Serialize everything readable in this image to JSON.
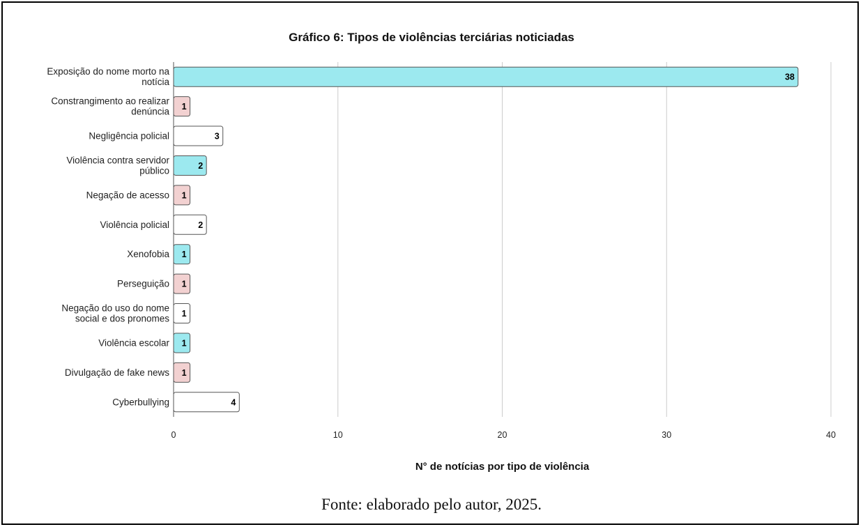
{
  "source_note": "Fonte: elaborado pelo autor, 2025.",
  "colors": {
    "cyan": "#9ce9ef",
    "pink": "#f2d1d1",
    "white": "#ffffff",
    "grid": "#cccccc",
    "axis": "#555555"
  },
  "chart_data": {
    "type": "bar",
    "orientation": "horizontal",
    "title": "Gráfico 6: Tipos de violências terciárias noticiadas",
    "xlabel": "N° de notícias por tipo de violência",
    "ylabel": "",
    "xlim": [
      0,
      40
    ],
    "xticks": [
      0,
      10,
      20,
      30,
      40
    ],
    "grid": true,
    "data_labels": true,
    "categories": [
      [
        "Exposição do nome morto na",
        "notícia"
      ],
      [
        "Constrangimento ao realizar",
        "denúncia"
      ],
      [
        "Negligência policial"
      ],
      [
        "Violência contra servidor",
        "público"
      ],
      [
        "Negação de acesso"
      ],
      [
        "Violência policial"
      ],
      [
        "Xenofobia"
      ],
      [
        "Perseguição"
      ],
      [
        "Negação do uso do nome",
        "social e dos pronomes"
      ],
      [
        "Violência escolar"
      ],
      [
        "Divulgação de fake news"
      ],
      [
        "Cyberbullying"
      ]
    ],
    "values": [
      38,
      1,
      3,
      2,
      1,
      2,
      1,
      1,
      1,
      1,
      1,
      4
    ],
    "bar_colors": [
      "cyan",
      "pink",
      "white",
      "cyan",
      "pink",
      "white",
      "cyan",
      "pink",
      "white",
      "cyan",
      "pink",
      "white"
    ]
  }
}
